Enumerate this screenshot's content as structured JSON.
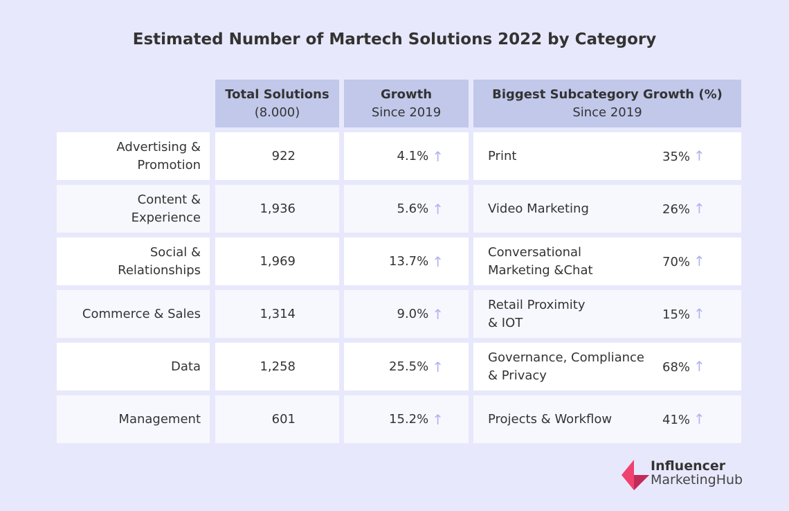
{
  "chart_data": {
    "type": "table",
    "title": "Estimated Number of Martech Solutions 2022 by Category",
    "columns": [
      {
        "label": "Total Solutions",
        "sub": "(8.000)"
      },
      {
        "label": "Growth",
        "sub": "Since 2019"
      },
      {
        "label": "Biggest Subcategory Growth (%)",
        "sub": "Since 2019"
      }
    ],
    "rows": [
      {
        "category": "Advertising & Promotion",
        "cat_lines": [
          "Advertising &",
          "Promotion"
        ],
        "total": "922",
        "growth": "4.1%",
        "subcategory": [
          "Print"
        ],
        "sub_growth": "35%"
      },
      {
        "category": "Content & Experience",
        "cat_lines": [
          "Content &",
          "Experience"
        ],
        "total": "1,936",
        "growth": "5.6%",
        "subcategory": [
          "Video Marketing"
        ],
        "sub_growth": "26%"
      },
      {
        "category": "Social & Relationships",
        "cat_lines": [
          "Social &",
          "Relationships"
        ],
        "total": "1,969",
        "growth": "13.7%",
        "subcategory": [
          "Conversational",
          "Marketing &Chat"
        ],
        "sub_growth": "70%"
      },
      {
        "category": "Commerce & Sales",
        "cat_lines": [
          "Commerce & Sales"
        ],
        "total": "1,314",
        "growth": "9.0%",
        "subcategory": [
          "Retail Proximity",
          "& IOT"
        ],
        "sub_growth": "15%"
      },
      {
        "category": "Data",
        "cat_lines": [
          "Data"
        ],
        "total": "1,258",
        "growth": "25.5%",
        "subcategory": [
          "Governance, Compliance",
          "& Privacy"
        ],
        "sub_growth": "68%"
      },
      {
        "category": "Management",
        "cat_lines": [
          "Management"
        ],
        "total": "601",
        "growth": "15.2%",
        "subcategory": [
          "Projects & Workflow"
        ],
        "sub_growth": "41%"
      }
    ],
    "arrow_icon": "arrow-up-icon",
    "colors": {
      "background": "#e8e8fc",
      "header": "#c1c8ea",
      "arrow": "#b0b3ee",
      "logo": "#e83e6c"
    }
  },
  "logo": {
    "line1": "Influencer",
    "line2": "MarketingHub"
  }
}
